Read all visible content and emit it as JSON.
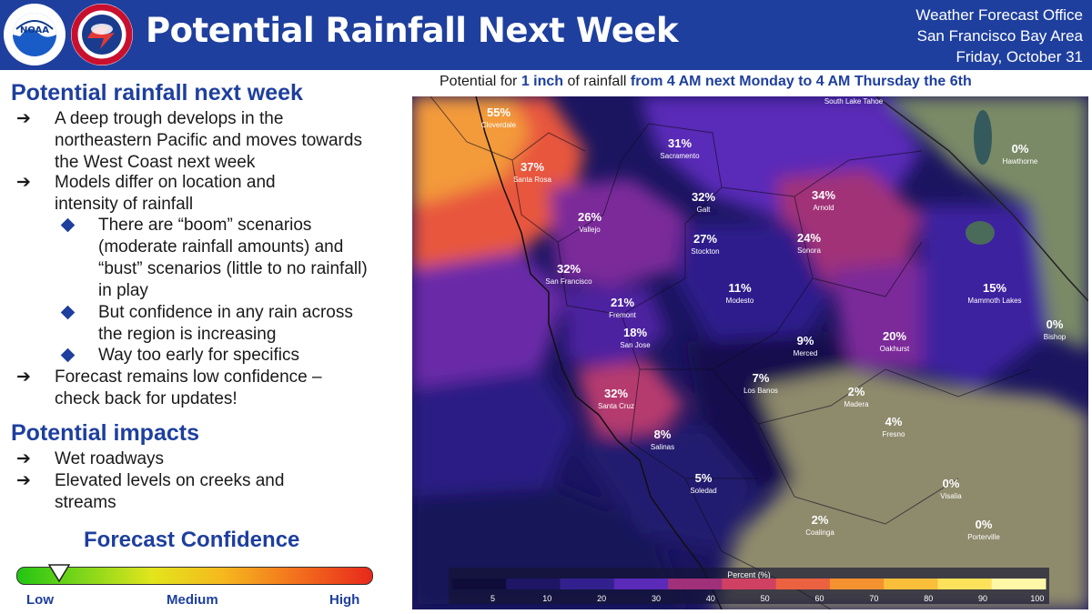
{
  "header": {
    "title": "Potential Rainfall Next Week",
    "office_line1": "Weather Forecast Office",
    "office_line2": "San Francisco Bay Area",
    "date": "Friday, October 31",
    "noaa_logo_text": "NOAA",
    "nws_logo_text": "NATIONAL WEATHER SERVICE",
    "header_color": "#1e3f9e"
  },
  "left": {
    "section1_title": "Potential rainfall next week",
    "bullets": [
      "A deep trough develops in the northeastern Pacific and moves towards the West Coast next week",
      "Models differ on location and intensity of rainfall",
      "Forecast remains low confidence – check back for updates!"
    ],
    "sub_bullets": [
      "There are “boom” scenarios (moderate rainfall amounts) and “bust” scenarios (little to no rainfall) in play",
      "But confidence in any rain across the region is increasing",
      "Way too early for specifics"
    ],
    "section2_title": "Potential impacts",
    "impacts": [
      "Wet roadways",
      "Elevated levels on creeks and streams"
    ],
    "bullet_icon": "arrow-right-icon",
    "sub_bullet_icon": "diamond-icon"
  },
  "confidence": {
    "title": "Forecast Confidence",
    "low": "Low",
    "medium": "Medium",
    "high": "High",
    "level": 0.12
  },
  "map": {
    "caption_pre": "Potential for ",
    "caption_amount": "1 inch",
    "caption_mid": " of rainfall ",
    "caption_period": "from 4 AM next Monday to 4 AM Thursday the 6th",
    "legend_title": "Percent (%)",
    "legend_ticks": [
      "5",
      "10",
      "20",
      "30",
      "40",
      "50",
      "60",
      "70",
      "80",
      "90",
      "100"
    ],
    "legend_colors": [
      "#100c3a",
      "#1e1565",
      "#33208f",
      "#5a2ab8",
      "#a0307a",
      "#d04062",
      "#ec6240",
      "#f49230",
      "#f9bf3a",
      "#fbe25a",
      "#fff7a8"
    ],
    "places": [
      {
        "name": "Cloverdale",
        "pct": "55%"
      },
      {
        "name": "Santa Rosa",
        "pct": "37%"
      },
      {
        "name": "Vallejo",
        "pct": "26%"
      },
      {
        "name": "San Francisco",
        "pct": "32%"
      },
      {
        "name": "Fremont",
        "pct": "21%"
      },
      {
        "name": "San Jose",
        "pct": "18%"
      },
      {
        "name": "Santa Cruz",
        "pct": "32%"
      },
      {
        "name": "Salinas",
        "pct": "8%"
      },
      {
        "name": "Soledad",
        "pct": "5%"
      },
      {
        "name": "Sacramento",
        "pct": "31%"
      },
      {
        "name": "Galt",
        "pct": "32%"
      },
      {
        "name": "Stockton",
        "pct": "27%"
      },
      {
        "name": "Modesto",
        "pct": "11%"
      },
      {
        "name": "Merced",
        "pct": "9%"
      },
      {
        "name": "Los Banos",
        "pct": "7%"
      },
      {
        "name": "Madera",
        "pct": "2%"
      },
      {
        "name": "Fresno",
        "pct": "4%"
      },
      {
        "name": "Coalinga",
        "pct": "2%"
      },
      {
        "name": "Visalia",
        "pct": "0%"
      },
      {
        "name": "Porterville",
        "pct": "0%"
      },
      {
        "name": "Arnold",
        "pct": "34%"
      },
      {
        "name": "Sonora",
        "pct": "24%"
      },
      {
        "name": "Oakhurst",
        "pct": "20%"
      },
      {
        "name": "Mammoth Lakes",
        "pct": "15%"
      },
      {
        "name": "Hawthorne",
        "pct": "0%"
      },
      {
        "name": "Bishop",
        "pct": "0%"
      },
      {
        "name": "South Lake Tahoe",
        "pct": ""
      }
    ]
  }
}
